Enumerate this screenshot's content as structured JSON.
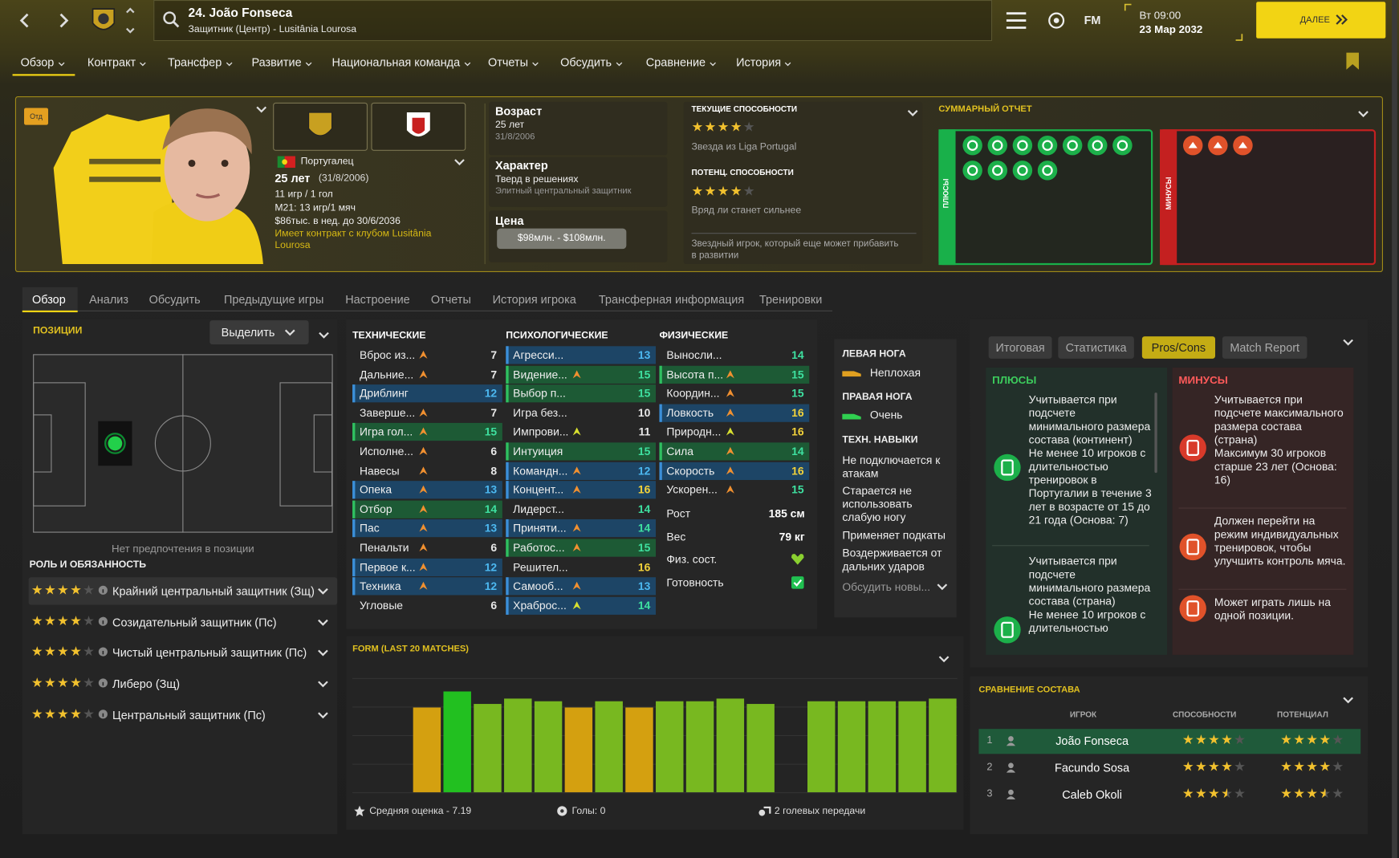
{
  "header": {
    "player_name": "24. João Fonseca",
    "player_subtitle": "Защитник (Центр) - Lusitânia Lourosa",
    "fm": "FM",
    "time": "Вт 09:00",
    "date": "23 Мар 2032",
    "continue": "ДАЛЕЕ"
  },
  "nav": [
    "Обзор",
    "Контракт",
    "Трансфер",
    "Развитие",
    "Национальная команда",
    "Отчеты",
    "Обсудить",
    "Сравнение",
    "История"
  ],
  "profile": {
    "badge": "Отд",
    "nationality": "Португалец",
    "age": "25 лет",
    "dob": "(31/8/2006)",
    "apps": "11 игр / 1 гол",
    "u21": "M21: 13 игр/1 мяч",
    "wage": "$86тыс. в нед. до 30/6/2036",
    "contract": "Имеет контракт с клубом Lusitânia Lourosa"
  },
  "info": {
    "age_label": "Возраст",
    "age": "25 лет",
    "dob": "31/8/2006",
    "personality_label": "Характер",
    "personality": "Тверд в решениях",
    "personality_sub": "Элитный центральный защитник",
    "value_label": "Цена",
    "value": "$98млн. - $108млн."
  },
  "ability": {
    "ca_label": "ТЕКУЩИЕ СПОСОБНОСТИ",
    "ca_stars": 4,
    "ca_desc": "Звезда из Liga Portugal",
    "pa_label": "ПОТЕНЦ. СПОСОБНОСТИ",
    "pa_stars": 4,
    "pa_desc": "Вряд ли станет сильнее",
    "note": "Звездный игрок, который еще может прибавить в развитии"
  },
  "summary": {
    "title": "СУММАРНЫЙ ОТЧЕТ",
    "pros_label": "ПЛЮСЫ",
    "cons_label": "МИНУСЫ"
  },
  "tabs": [
    "Обзор",
    "Анализ",
    "Обсудить",
    "Предыдущие игры",
    "Настроение",
    "Отчеты",
    "История игрока",
    "Трансферная информация",
    "Тренировки"
  ],
  "positions": {
    "title": "ПОЗИЦИИ",
    "select": "Выделить",
    "no_pref": "Нет предпочтения в позиции",
    "roles_title": "РОЛЬ И ОБЯЗАННОСТЬ",
    "roles": [
      {
        "name": "Крайний центральный защитник (Зщ)",
        "stars": 4
      },
      {
        "name": "Созидательный защитник (Пс)",
        "stars": 4
      },
      {
        "name": "Чистый центральный защитник (Пс)",
        "stars": 4
      },
      {
        "name": "Либеро (Зщ)",
        "stars": 4
      },
      {
        "name": "Центральный защитник (Пс)",
        "stars": 4
      }
    ]
  },
  "attributes": {
    "technical": {
      "title": "ТЕХНИЧЕСКИЕ",
      "items": [
        {
          "name": "Вброс из...",
          "value": 7,
          "arrow": "orange"
        },
        {
          "name": "Дальние...",
          "value": 7,
          "arrow": "orange"
        },
        {
          "name": "Дриблинг",
          "value": 12,
          "hl": "blue"
        },
        {
          "name": "Заверше...",
          "value": 7,
          "arrow": "orange"
        },
        {
          "name": "Игра гол...",
          "value": 15,
          "hl": "green",
          "arrow": "orange"
        },
        {
          "name": "Исполне...",
          "value": 6,
          "arrow": "orange"
        },
        {
          "name": "Навесы",
          "value": 8,
          "arrow": "orange"
        },
        {
          "name": "Опека",
          "value": 13,
          "hl": "blue",
          "arrow": "orange"
        },
        {
          "name": "Отбор",
          "value": 14,
          "hl": "green",
          "arrow": "orange"
        },
        {
          "name": "Пас",
          "value": 13,
          "hl": "blue",
          "arrow": "orange"
        },
        {
          "name": "Пенальти",
          "value": 6,
          "arrow": "orange"
        },
        {
          "name": "Первое к...",
          "value": 12,
          "hl": "blue",
          "arrow": "orange"
        },
        {
          "name": "Техника",
          "value": 12,
          "hl": "blue",
          "arrow": "orange"
        },
        {
          "name": "Угловые",
          "value": 6
        }
      ]
    },
    "mental": {
      "title": "ПСИХОЛОГИЧЕСКИЕ",
      "items": [
        {
          "name": "Агресси...",
          "value": 13,
          "hl": "blue"
        },
        {
          "name": "Видение...",
          "value": 15,
          "hl": "green",
          "arrow": "orange"
        },
        {
          "name": "Выбор п...",
          "value": 15,
          "hl": "green"
        },
        {
          "name": "Игра без...",
          "value": 10
        },
        {
          "name": "Импрови...",
          "value": 11,
          "arrow": "yellow"
        },
        {
          "name": "Интуиция",
          "value": 15,
          "hl": "green"
        },
        {
          "name": "Командн...",
          "value": 12,
          "hl": "blue",
          "arrow": "orange"
        },
        {
          "name": "Концент...",
          "value": 16,
          "hl": "blue",
          "arrow": "orange"
        },
        {
          "name": "Лидерст...",
          "value": 14
        },
        {
          "name": "Приняти...",
          "value": 14,
          "hl": "blue",
          "arrow": "orange"
        },
        {
          "name": "Работос...",
          "value": 15,
          "hl": "green",
          "arrow": "orange"
        },
        {
          "name": "Решител...",
          "value": 16
        },
        {
          "name": "Самооб...",
          "value": 13,
          "hl": "blue",
          "arrow": "orange"
        },
        {
          "name": "Храброс...",
          "value": 14,
          "hl": "blue",
          "arrow": "yellow"
        }
      ]
    },
    "physical": {
      "title": "ФИЗИЧЕСКИЕ",
      "items": [
        {
          "name": "Выносли...",
          "value": 14
        },
        {
          "name": "Высота п...",
          "value": 15,
          "hl": "green",
          "arrow": "orange"
        },
        {
          "name": "Координ...",
          "value": 15,
          "arrow": "orange"
        },
        {
          "name": "Ловкость",
          "value": 16,
          "hl": "blue",
          "arrow": "orange"
        },
        {
          "name": "Природн...",
          "value": 16,
          "arrow": "yellow"
        },
        {
          "name": "Сила",
          "value": 14,
          "hl": "green",
          "arrow": "orange"
        },
        {
          "name": "Скорость",
          "value": 16,
          "hl": "blue",
          "arrow": "orange"
        },
        {
          "name": "Ускорен...",
          "value": 15,
          "arrow": "orange"
        }
      ],
      "extras": [
        {
          "name": "Рост",
          "value": "185 см"
        },
        {
          "name": "Вес",
          "value": "79 кг"
        },
        {
          "name": "Физ. сост."
        },
        {
          "name": "Готовность"
        }
      ]
    }
  },
  "feet": {
    "left_label": "ЛЕВАЯ НОГА",
    "left": "Неплохая",
    "right_label": "ПРАВАЯ НОГА",
    "right": "Очень",
    "skills_label": "ТЕХН. НАВЫКИ",
    "skills": [
      "Не подключается к атакам",
      "Старается не использовать слабую ногу",
      "Применяет подкаты",
      "Воздерживается от дальних ударов"
    ],
    "discuss": "Обсудить новы..."
  },
  "form": {
    "title": "FORM (LAST 20 MATCHES)",
    "values": [
      null,
      null,
      6.3,
      7.5,
      6.6,
      7.0,
      6.8,
      6.3,
      6.8,
      6.3,
      6.8,
      6.8,
      7.0,
      6.6,
      null,
      6.8,
      6.8,
      6.8,
      6.8,
      7.0
    ],
    "ylim": [
      0,
      8.5
    ],
    "avg": "Средняя оценка - 7.19",
    "goals": "Голы: 0",
    "assists": "2 голевых передачи"
  },
  "report": {
    "tabs": [
      "Итоговая",
      "Статистика",
      "Pros/Cons",
      "Match Report"
    ],
    "active_tab": 2,
    "pros_title": "ПЛЮСЫ",
    "pros": [
      {
        "title": "Учитывается при подсчете минимального размера состава (континент)",
        "detail": "Не менее 10 игроков с длительностью тренировок в Португалии в течение 3 лет в возрасте от 15 до 21 года (Основа: 7)"
      },
      {
        "title": "Учитывается при подсчете минимального размера состава (страна)",
        "detail": "Не менее 10 игроков с длительностью"
      }
    ],
    "cons_title": "МИНУСЫ",
    "cons": [
      {
        "title": "Учитывается при подсчете максимального размера состава (страна)",
        "detail": "Максимум 30 игроков старше 23 лет (Основа: 16)"
      },
      {
        "title": "Должен перейти на режим индивидуальных тренировок, чтобы улучшить контроль мяча."
      },
      {
        "title": "Может играть лишь на одной позиции."
      }
    ]
  },
  "squad": {
    "title": "СРАВНЕНИЕ СОСТАВА",
    "headers": [
      "ИГРОК",
      "СПОСОБНОСТИ",
      "ПОТЕНЦИАЛ"
    ],
    "rows": [
      {
        "rank": 1,
        "name": "João Fonseca",
        "ability": 4,
        "potential": 4
      },
      {
        "rank": 2,
        "name": "Facundo Sosa",
        "ability": 4,
        "potential": 4
      },
      {
        "rank": 3,
        "name": "Caleb Okoli",
        "ability": 3.5,
        "potential": 3.5
      }
    ]
  }
}
